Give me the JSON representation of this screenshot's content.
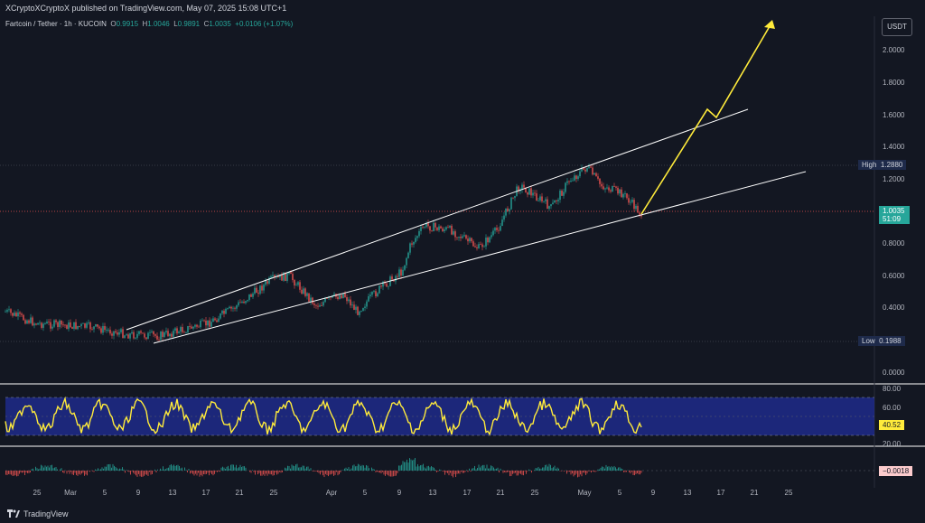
{
  "header": {
    "published": "XCryptoXCryptoX published on TradingView.com, May 07, 2025 15:08 UTC+1"
  },
  "symbol": {
    "name": "Fartcoin / Tether · 1h · KUCOIN",
    "o_label": "O",
    "o_value": "0.9915",
    "h_label": "H",
    "h_value": "1.0046",
    "l_label": "L",
    "l_value": "0.9891",
    "c_label": "C",
    "c_value": "1.0035",
    "change": "+0.0106 (+1.07%)"
  },
  "currency_button": "USDT",
  "price_axis": [
    "2.0000",
    "1.8000",
    "1.6000",
    "1.4000",
    "1.2000",
    "0.8000",
    "0.6000",
    "0.4000",
    "0.0000"
  ],
  "high_tag": {
    "label": "High",
    "value": "1.2880"
  },
  "low_tag": {
    "label": "Low",
    "value": "0.1988"
  },
  "last_price": {
    "value": "1.0035",
    "countdown": "51:09"
  },
  "rsi": {
    "levels": [
      "80.00",
      "60.00",
      "20.00"
    ],
    "value": "40.52"
  },
  "macd": {
    "value": "−0.0018"
  },
  "time_axis": [
    "25",
    "Mar",
    "5",
    "9",
    "13",
    "17",
    "21",
    "25",
    "Apr",
    "5",
    "9",
    "13",
    "17",
    "21",
    "25",
    "May",
    "5",
    "9",
    "13",
    "17",
    "21",
    "25"
  ],
  "footer": {
    "brand": "TradingView"
  },
  "colors": {
    "bg": "#131722",
    "up": "#26a69a",
    "down": "#ef5350",
    "channel": "#ffffff",
    "projection": "#ffeb3b",
    "rsi_band": "#1e2a8a"
  }
}
